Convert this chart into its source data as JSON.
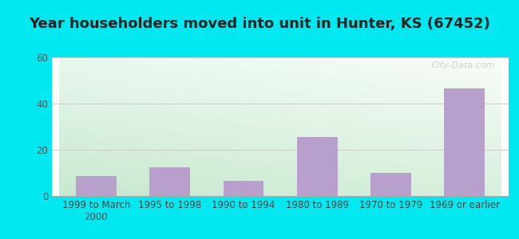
{
  "title": "Year householders moved into unit in Hunter, KS (67452)",
  "categories": [
    "1999 to March\n2000",
    "1995 to 1998",
    "1990 to 1994",
    "1980 to 1989",
    "1970 to 1979",
    "1969 or earlier"
  ],
  "values": [
    8.5,
    12.5,
    6.5,
    25.5,
    10.0,
    46.5
  ],
  "bar_color": "#b8a0cc",
  "ylim": [
    0,
    60
  ],
  "yticks": [
    0,
    20,
    40,
    60
  ],
  "background_outer": "#00e8f0",
  "grad_top_left": "#e8f8ee",
  "grad_top_right": "#f8fdf8",
  "grad_bottom_left": "#c8e8d0",
  "grad_bottom_right": "#d8f0dc",
  "grid_color": "#cccccc",
  "title_fontsize": 13,
  "tick_fontsize": 8.5,
  "watermark": "City-Data.com",
  "watermark_color": "#bbccbb"
}
